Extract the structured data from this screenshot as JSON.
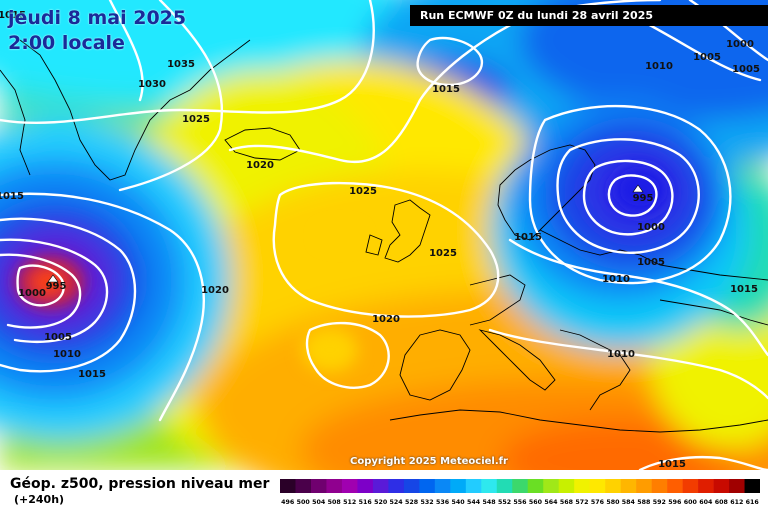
{
  "header": {
    "date_label": "jeudi 8 mai 2025",
    "time_label": "2:00 locale",
    "run_label": "Run ECMWF 0Z du lundi 28 avril 2025"
  },
  "footer": {
    "parameter_label": "Géop. z500, pression niveau mer",
    "lead_time_label": "(+240h)",
    "copyright": "Copyright 2025 Meteociel.fr"
  },
  "legend": {
    "ticks": [
      "496",
      "500",
      "504",
      "508",
      "512",
      "516",
      "520",
      "524",
      "528",
      "532",
      "536",
      "540",
      "544",
      "548",
      "552",
      "556",
      "560",
      "564",
      "568",
      "572",
      "576",
      "580",
      "584",
      "588",
      "592",
      "596",
      "600",
      "604",
      "608",
      "612",
      "616"
    ],
    "colors": [
      "#2a0028",
      "#4a004a",
      "#70006f",
      "#90008f",
      "#a000b0",
      "#7d00c8",
      "#5a1ad8",
      "#2e2ee6",
      "#1646e6",
      "#0066f0",
      "#0a88f6",
      "#00aaf8",
      "#22ccff",
      "#2ee8ee",
      "#22dcb4",
      "#3cd86c",
      "#6adf24",
      "#a0e818",
      "#c8f000",
      "#f0f200",
      "#ffe800",
      "#ffd200",
      "#ffb600",
      "#ff9c00",
      "#ff7e00",
      "#ff5e00",
      "#f23c00",
      "#e01e00",
      "#c80a00",
      "#a00000",
      "#000000"
    ]
  },
  "map": {
    "pressure_labels": [
      "1035",
      "1030",
      "1025",
      "1020",
      "1015",
      "1015",
      "1025",
      "1025",
      "1020",
      "1020",
      "1015",
      "995",
      "1000",
      "1005",
      "1010",
      "1015",
      "1000",
      "1005",
      "1005",
      "1010",
      "1015",
      "995",
      "1000",
      "1005",
      "1010",
      "1015",
      "1010",
      "1015",
      "1015",
      "1010"
    ],
    "field_colors": {
      "low_atlantic_core": "#ff4500",
      "low_scandinavia_core": "#1e1ee6",
      "high_ridge": "#ffe800",
      "mediterranean": "#ff7e00",
      "arctic_cyan": "#22e8ff",
      "isobar": "#ffffff",
      "coastline": "#000000"
    }
  }
}
